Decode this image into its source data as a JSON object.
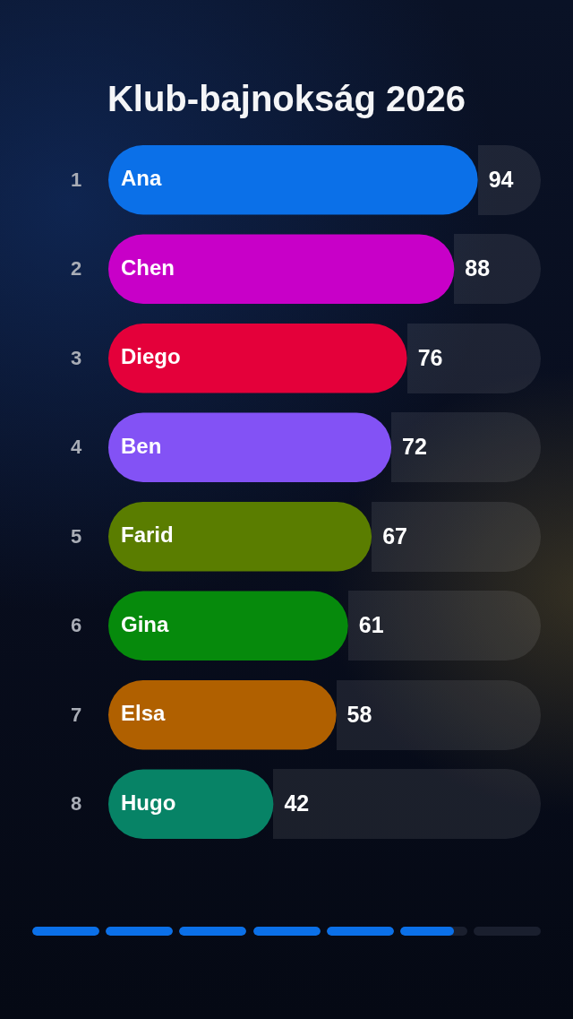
{
  "chart_data": {
    "type": "bar",
    "orientation": "horizontal",
    "title": "Klub-bajnokság 2026",
    "categories": [
      "Ana",
      "Chen",
      "Diego",
      "Ben",
      "Farid",
      "Gina",
      "Elsa",
      "Hugo"
    ],
    "values": [
      94,
      88,
      76,
      72,
      67,
      61,
      58,
      42
    ],
    "colors": [
      "#0b70e8",
      "#c800c8",
      "#e4003a",
      "#8352f5",
      "#5a7d00",
      "#068a0c",
      "#b06000",
      "#078366"
    ],
    "data_labels": true,
    "tick_labels": "y",
    "annotations": [
      "1",
      "2",
      "3",
      "4",
      "5",
      "6",
      "7",
      "8"
    ]
  }
}
